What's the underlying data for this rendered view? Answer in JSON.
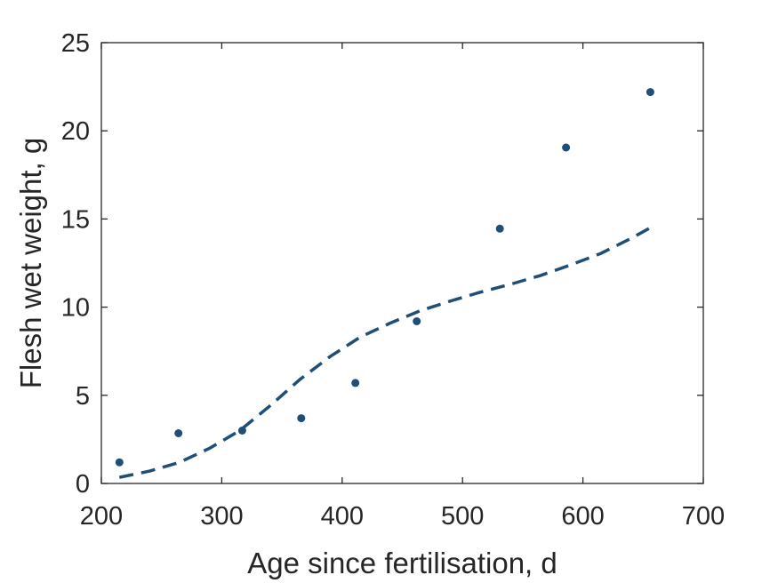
{
  "chart_data": {
    "type": "scatter",
    "title": "",
    "xlabel": "Age since fertilisation, d",
    "ylabel": "Flesh wet weight, g",
    "xlim": [
      200,
      700
    ],
    "ylim": [
      0,
      25
    ],
    "xticks": [
      200,
      300,
      400,
      500,
      600,
      700
    ],
    "yticks": [
      0,
      5,
      10,
      15,
      20,
      25
    ],
    "grid": false,
    "legend": "none",
    "color": "#1f4e79",
    "series": [
      {
        "type": "scatter",
        "x": [
          215,
          264,
          317,
          366,
          411,
          462,
          531,
          586,
          656
        ],
        "y": [
          1.2,
          2.85,
          3.0,
          3.7,
          5.7,
          9.2,
          14.45,
          19.05,
          22.2
        ]
      },
      {
        "type": "line",
        "style": "dashed",
        "x": [
          215,
          240,
          265,
          290,
          315,
          340,
          365,
          390,
          415,
          440,
          465,
          490,
          515,
          540,
          565,
          590,
          615,
          640,
          656
        ],
        "y": [
          0.35,
          0.7,
          1.2,
          2.0,
          3.0,
          4.4,
          5.9,
          7.2,
          8.3,
          9.1,
          9.8,
          10.35,
          10.85,
          11.3,
          11.8,
          12.4,
          13.05,
          13.9,
          14.5
        ]
      }
    ]
  }
}
